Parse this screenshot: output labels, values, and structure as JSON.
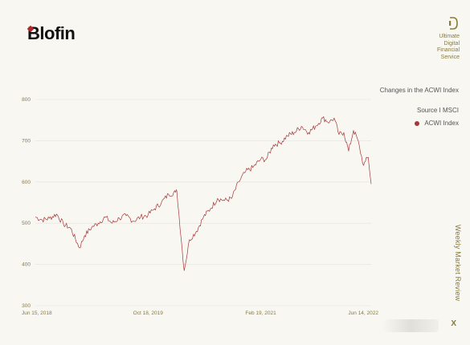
{
  "brand": {
    "logo": "Blofin",
    "tagline": [
      "Ultimate",
      "Digital",
      "Financial",
      "Service"
    ],
    "icon": "bracket-d-icon",
    "accent_color": "#8a7a3a",
    "logo_mark_color": "#b3262a"
  },
  "panel": {
    "title": "Changes in the ACWI Index",
    "source": "Source I MSCI",
    "section_label": "Weekly Market Review",
    "close_label": "X"
  },
  "chart_data": {
    "type": "line",
    "title": "",
    "xlabel": "",
    "ylabel": "",
    "x_ticks": [
      "Jun 15, 2018",
      "Oct 18, 2019",
      "Feb 19, 2021",
      "Jun 14, 2022"
    ],
    "y_ticks": [
      300,
      400,
      500,
      600,
      700,
      800
    ],
    "ylim": [
      300,
      800
    ],
    "xlim": [
      "Jun 15, 2018",
      "Jun 14, 2022"
    ],
    "grid": "horizontal",
    "legend": "right",
    "series": [
      {
        "name": "ACWI Index",
        "color": "#a8373a",
        "points": [
          [
            "2018-06-15",
            515
          ],
          [
            "2018-07-15",
            508
          ],
          [
            "2018-08-15",
            512
          ],
          [
            "2018-09-15",
            522
          ],
          [
            "2018-10-15",
            498
          ],
          [
            "2018-11-15",
            488
          ],
          [
            "2018-12-24",
            440
          ],
          [
            "2019-01-15",
            470
          ],
          [
            "2019-02-15",
            490
          ],
          [
            "2019-03-15",
            500
          ],
          [
            "2019-04-15",
            515
          ],
          [
            "2019-05-15",
            500
          ],
          [
            "2019-06-15",
            512
          ],
          [
            "2019-07-15",
            518
          ],
          [
            "2019-08-15",
            505
          ],
          [
            "2019-09-15",
            515
          ],
          [
            "2019-10-18",
            520
          ],
          [
            "2019-11-15",
            535
          ],
          [
            "2019-12-15",
            550
          ],
          [
            "2020-01-15",
            570
          ],
          [
            "2020-02-15",
            575
          ],
          [
            "2020-02-20",
            578
          ],
          [
            "2020-03-23",
            385
          ],
          [
            "2020-04-15",
            460
          ],
          [
            "2020-05-15",
            480
          ],
          [
            "2020-06-15",
            515
          ],
          [
            "2020-07-15",
            535
          ],
          [
            "2020-08-15",
            560
          ],
          [
            "2020-09-15",
            555
          ],
          [
            "2020-10-15",
            560
          ],
          [
            "2020-11-15",
            600
          ],
          [
            "2020-12-15",
            625
          ],
          [
            "2021-01-15",
            635
          ],
          [
            "2021-02-19",
            655
          ],
          [
            "2021-03-15",
            655
          ],
          [
            "2021-04-15",
            690
          ],
          [
            "2021-05-15",
            695
          ],
          [
            "2021-06-15",
            712
          ],
          [
            "2021-07-15",
            720
          ],
          [
            "2021-08-15",
            735
          ],
          [
            "2021-09-15",
            720
          ],
          [
            "2021-10-15",
            735
          ],
          [
            "2021-11-15",
            755
          ],
          [
            "2021-12-15",
            745
          ],
          [
            "2022-01-04",
            755
          ],
          [
            "2022-01-25",
            715
          ],
          [
            "2022-02-15",
            720
          ],
          [
            "2022-03-08",
            675
          ],
          [
            "2022-03-29",
            725
          ],
          [
            "2022-04-15",
            705
          ],
          [
            "2022-05-12",
            640
          ],
          [
            "2022-05-20",
            650
          ],
          [
            "2022-06-01",
            660
          ],
          [
            "2022-06-14",
            595
          ]
        ]
      }
    ]
  }
}
